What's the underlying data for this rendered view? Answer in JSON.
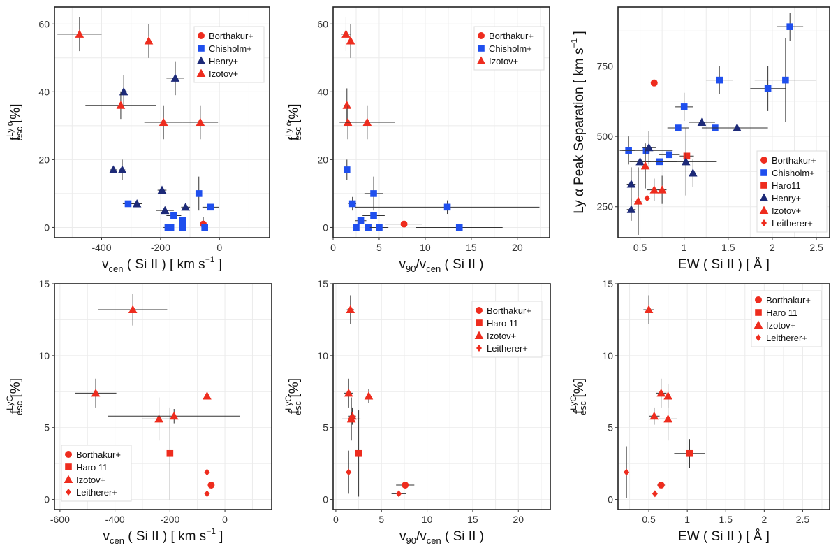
{
  "colors": {
    "Borthakur+": "#ee2c1e",
    "Chisholm+": "#1f4fee",
    "Haro11": "#ee2c1e",
    "Haro 11": "#ee2c1e",
    "Henry+": "#1d2a78",
    "Izotov+": "#ee2c1e",
    "Leitherer+": "#ee2c1e"
  },
  "markers": {
    "Borthakur+": "circle",
    "Chisholm+": "square",
    "Haro11": "square",
    "Haro 11": "square",
    "Henry+": "triangle",
    "Izotov+": "triangle",
    "Leitherer+": "diamond"
  },
  "chart_data": [
    {
      "type": "scatter",
      "panel": "top-left",
      "xlabel_main": "v",
      "xlabel_sub": "cen",
      "xlabel_rest": " ( Si II ) [ km s",
      "xlabel_sup": "−1",
      "xlabel_end": " ]",
      "ylabel_main": "f",
      "ylabel_sup": "Ly α",
      "ylabel_sub": "esc",
      "ylabel_rest": " [%]",
      "xlim": [
        -560,
        170
      ],
      "ylim": [
        -3,
        65
      ],
      "xticks": [
        -400,
        -200,
        0
      ],
      "yticks": [
        0,
        20,
        40,
        60
      ],
      "legend_position": "top-right",
      "legend": [
        "Borthakur+",
        "Chisholm+",
        "Henry+",
        "Izotov+"
      ],
      "series": [
        {
          "name": "Borthakur+",
          "points": [
            {
              "x": -55,
              "y": 1,
              "ye": 2
            }
          ]
        },
        {
          "name": "Chisholm+",
          "points": [
            {
              "x": -310,
              "y": 7,
              "xe": 18
            },
            {
              "x": -175,
              "y": 0,
              "xe": 15
            },
            {
              "x": -165,
              "y": 0
            },
            {
              "x": -155,
              "y": 3.5,
              "xe": 25
            },
            {
              "x": -125,
              "y": 2,
              "xe": 10
            },
            {
              "x": -125,
              "y": 0,
              "xe": 10
            },
            {
              "x": -70,
              "y": 10,
              "ye": 5
            },
            {
              "x": -50,
              "y": 0
            },
            {
              "x": -30,
              "y": 6,
              "xe": 28
            }
          ]
        },
        {
          "name": "Henry+",
          "points": [
            {
              "x": -325,
              "y": 40,
              "xe": 12,
              "ye": 5
            },
            {
              "x": -360,
              "y": 17,
              "xe": 12
            },
            {
              "x": -330,
              "y": 17,
              "xe": 10,
              "ye": 3
            },
            {
              "x": -280,
              "y": 7,
              "xe": 18
            },
            {
              "x": -195,
              "y": 11,
              "xe": 15
            },
            {
              "x": -185,
              "y": 5,
              "xe": 30
            },
            {
              "x": -115,
              "y": 6,
              "xe": 15
            },
            {
              "x": -150,
              "y": 44,
              "xe": 30,
              "ye": 5
            }
          ]
        },
        {
          "name": "Izotov+",
          "points": [
            {
              "x": -475,
              "y": 57,
              "xe": 75,
              "ye": 5
            },
            {
              "x": -240,
              "y": 55,
              "xe": 120,
              "ye": 5
            },
            {
              "x": -335,
              "y": 36,
              "xe": 120,
              "ye": 4
            },
            {
              "x": -190,
              "y": 31,
              "xe": 65,
              "ye": 5
            },
            {
              "x": -65,
              "y": 31,
              "xe": 60,
              "ye": 5
            }
          ]
        }
      ]
    },
    {
      "type": "scatter",
      "panel": "top-middle",
      "xlabel_main": "v",
      "xlabel_sub": "90",
      "xlabel_rest": "/v",
      "xlabel_sub2": "cen",
      "xlabel_end": " ( Si II )",
      "ylabel_main": "f",
      "ylabel_sup": "Ly α",
      "ylabel_sub": "esc",
      "ylabel_rest": " [%]",
      "xlim": [
        0,
        23.5
      ],
      "ylim": [
        -3,
        65
      ],
      "xticks": [
        0,
        5,
        10,
        15,
        20
      ],
      "yticks": [
        0,
        20,
        40,
        60
      ],
      "legend_position": "top-right",
      "legend": [
        "Borthakur+",
        "Chisholm+",
        "Izotov+"
      ],
      "series": [
        {
          "name": "Borthakur+",
          "points": [
            {
              "x": 7.7,
              "y": 1,
              "xe": 2
            }
          ]
        },
        {
          "name": "Chisholm+",
          "points": [
            {
              "x": 1.5,
              "y": 17,
              "ye": 3
            },
            {
              "x": 2.1,
              "y": 7,
              "xe": 0.4,
              "ye": 2
            },
            {
              "x": 2.5,
              "y": 0
            },
            {
              "x": 3.0,
              "y": 2,
              "xe": 0.6
            },
            {
              "x": 3.8,
              "y": 0
            },
            {
              "x": 4.4,
              "y": 3.5,
              "xe": 1.2
            },
            {
              "x": 4.4,
              "y": 10,
              "xe": 1,
              "ye": 5
            },
            {
              "x": 5.0,
              "y": 0,
              "xe": 1
            },
            {
              "x": 12.4,
              "y": 6,
              "xe": 10,
              "ye": 2
            },
            {
              "x": 13.7,
              "y": 0,
              "xe": 4.7
            }
          ]
        },
        {
          "name": "Izotov+",
          "points": [
            {
              "x": 1.4,
              "y": 57,
              "xe": 0.5,
              "ye": 5
            },
            {
              "x": 1.9,
              "y": 55,
              "xe": 1,
              "ye": 5
            },
            {
              "x": 1.5,
              "y": 36,
              "xe": 0.3,
              "ye": 5
            },
            {
              "x": 1.6,
              "y": 31,
              "xe": 0.4,
              "ye": 5
            },
            {
              "x": 3.7,
              "y": 31,
              "xe": 3,
              "ye": 5
            }
          ]
        }
      ]
    },
    {
      "type": "scatter",
      "panel": "top-right",
      "xlabel_main": "EW",
      "xlabel_rest": " ( Si II ) [ Å ]",
      "ylabel_main": "Ly α Peak Separation [ km s",
      "ylabel_sup": "−1",
      "ylabel_end": " ]",
      "xlim": [
        0.25,
        2.65
      ],
      "ylim": [
        140,
        960
      ],
      "xticks": [
        0.5,
        1.0,
        1.5,
        2.0,
        2.5
      ],
      "yticks": [
        250,
        500,
        750
      ],
      "legend_position": "bottom-right",
      "legend": [
        "Borthakur+",
        "Chisholm+",
        "Haro11",
        "Henry+",
        "Izotov+",
        "Leitherer+"
      ],
      "series": [
        {
          "name": "Borthakur+",
          "points": [
            {
              "x": 0.66,
              "y": 690
            }
          ]
        },
        {
          "name": "Chisholm+",
          "points": [
            {
              "x": 0.37,
              "y": 450,
              "xe": 0.07,
              "ye": 50
            },
            {
              "x": 0.57,
              "y": 450,
              "xe": 0.3
            },
            {
              "x": 0.72,
              "y": 410,
              "xe": 0.2
            },
            {
              "x": 0.83,
              "y": 435,
              "xe": 0.12
            },
            {
              "x": 0.93,
              "y": 530,
              "xe": 0.12
            },
            {
              "x": 1.0,
              "y": 605,
              "xe": 0.1,
              "ye": 50
            },
            {
              "x": 1.35,
              "y": 530,
              "xe": 0.15
            },
            {
              "x": 1.4,
              "y": 700,
              "xe": 0.15,
              "ye": 50
            },
            {
              "x": 1.95,
              "y": 670,
              "xe": 0.2,
              "ye": 80
            },
            {
              "x": 2.15,
              "y": 700,
              "xe": 0.35,
              "ye": 150
            },
            {
              "x": 2.2,
              "y": 890,
              "xe": 0.15,
              "ye": 50
            }
          ]
        },
        {
          "name": "Haro11",
          "points": [
            {
              "x": 1.03,
              "y": 430,
              "xe": 0.08
            }
          ]
        },
        {
          "name": "Henry+",
          "points": [
            {
              "x": 0.4,
              "y": 240,
              "xe": 0.05,
              "ye": 40
            },
            {
              "x": 0.4,
              "y": 330,
              "xe": 0.05,
              "ye": 60
            },
            {
              "x": 0.5,
              "y": 410,
              "xe": 0.12
            },
            {
              "x": 0.6,
              "y": 460,
              "xe": 0.08,
              "ye": 60
            },
            {
              "x": 1.02,
              "y": 410,
              "xe": 0.35,
              "ye": 120
            },
            {
              "x": 1.1,
              "y": 370,
              "xe": 0.35,
              "ye": 50
            },
            {
              "x": 1.2,
              "y": 550,
              "xe": 0.15
            },
            {
              "x": 1.6,
              "y": 530,
              "xe": 0.35
            }
          ]
        },
        {
          "name": "Izotov+",
          "points": [
            {
              "x": 0.48,
              "y": 270,
              "xe": 0.05,
              "ye": 120
            },
            {
              "x": 0.56,
              "y": 395,
              "xe": 0.05,
              "ye": 80
            },
            {
              "x": 0.66,
              "y": 310,
              "xe": 0.08,
              "ye": 40
            },
            {
              "x": 0.75,
              "y": 310,
              "xe": 0.05,
              "ye": 50
            }
          ]
        },
        {
          "name": "Leitherer+",
          "points": [
            {
              "x": 0.58,
              "y": 280
            }
          ]
        }
      ]
    },
    {
      "type": "scatter",
      "panel": "bottom-left",
      "xlabel_main": "v",
      "xlabel_sub": "cen",
      "xlabel_rest": " ( Si II ) [ km s",
      "xlabel_sup": "−1",
      "xlabel_end": " ]",
      "ylabel_main": "f",
      "ylabel_sup": "LyC",
      "ylabel_sub": "esc",
      "ylabel_rest": " [%]",
      "xlim": [
        -620,
        170
      ],
      "ylim": [
        -0.7,
        15
      ],
      "xticks": [
        -600,
        -400,
        -200,
        0
      ],
      "yticks": [
        0,
        5,
        10,
        15
      ],
      "legend_position": "bottom-left",
      "legend": [
        "Borthakur+",
        "Haro 11",
        "Izotov+",
        "Leitherer+"
      ],
      "series": [
        {
          "name": "Borthakur+",
          "points": [
            {
              "x": -50,
              "y": 1
            }
          ]
        },
        {
          "name": "Haro 11",
          "points": [
            {
              "x": -200,
              "y": 3.2,
              "ye": 3.2
            }
          ]
        },
        {
          "name": "Izotov+",
          "points": [
            {
              "x": -335,
              "y": 13.2,
              "xe": 125,
              "ye": 1.1
            },
            {
              "x": -470,
              "y": 7.4,
              "xe": 75,
              "ye": 1
            },
            {
              "x": -65,
              "y": 7.2,
              "xe": 30,
              "ye": 0.8
            },
            {
              "x": -240,
              "y": 5.6,
              "xe": 60,
              "ye": 1.5
            },
            {
              "x": -185,
              "y": 5.8,
              "xe": 240,
              "ye": 0.5
            }
          ]
        },
        {
          "name": "Leitherer+",
          "points": [
            {
              "x": -65,
              "y": 1.9,
              "ye": 1
            },
            {
              "x": -65,
              "y": 0.4,
              "ye": 0.3
            }
          ]
        }
      ]
    },
    {
      "type": "scatter",
      "panel": "bottom-middle",
      "xlabel_main": "v",
      "xlabel_sub": "90",
      "xlabel_rest": "/v",
      "xlabel_sub2": "cen",
      "xlabel_end": " ( Si II )",
      "ylabel_main": "f",
      "ylabel_sup": "LyC",
      "ylabel_sub": "esc",
      "ylabel_rest": " [%]",
      "xlim": [
        -0.3,
        23.5
      ],
      "ylim": [
        -0.7,
        15
      ],
      "xticks": [
        0,
        5,
        10,
        15,
        20
      ],
      "yticks": [
        0,
        5,
        10,
        15
      ],
      "legend_position": "top-right",
      "legend": [
        "Borthakur+",
        "Haro 11",
        "Izotov+",
        "Leitherer+"
      ],
      "series": [
        {
          "name": "Borthakur+",
          "points": [
            {
              "x": 7.6,
              "y": 1,
              "xe": 1
            }
          ]
        },
        {
          "name": "Haro 11",
          "points": [
            {
              "x": 2.5,
              "y": 3.2,
              "ye": 3
            }
          ]
        },
        {
          "name": "Izotov+",
          "points": [
            {
              "x": 1.6,
              "y": 13.2,
              "xe": 0.4,
              "ye": 1
            },
            {
              "x": 1.4,
              "y": 7.4,
              "xe": 0.5,
              "ye": 1
            },
            {
              "x": 3.6,
              "y": 7.2,
              "xe": 3,
              "ye": 0.5
            },
            {
              "x": 1.8,
              "y": 5.8,
              "xe": 0.4,
              "ye": 0.6
            },
            {
              "x": 1.7,
              "y": 5.6,
              "xe": 1,
              "ye": 1.5
            }
          ]
        },
        {
          "name": "Leitherer+",
          "points": [
            {
              "x": 1.4,
              "y": 1.9,
              "ye": 1.5
            },
            {
              "x": 6.9,
              "y": 0.4,
              "xe": 0.8
            }
          ]
        }
      ]
    },
    {
      "type": "scatter",
      "panel": "bottom-right",
      "xlabel_main": "EW",
      "xlabel_rest": " ( Si II ) [ Å ]",
      "ylabel_main": "f",
      "ylabel_sup": "LyC",
      "ylabel_sub": "esc",
      "ylabel_rest": " [%]",
      "xlim": [
        0.1,
        2.85
      ],
      "ylim": [
        -0.7,
        15
      ],
      "xticks": [
        0.5,
        1.0,
        1.5,
        2.0,
        2.5
      ],
      "yticks": [
        0,
        5,
        10,
        15
      ],
      "legend_position": "top-right",
      "legend": [
        "Borthakur+",
        "Haro 11",
        "Izotov+",
        "Leitherer+"
      ],
      "series": [
        {
          "name": "Borthakur+",
          "points": [
            {
              "x": 0.66,
              "y": 1,
              "xe": 0.05
            }
          ]
        },
        {
          "name": "Haro 11",
          "points": [
            {
              "x": 1.03,
              "y": 3.2,
              "xe": 0.2,
              "ye": 1
            }
          ]
        },
        {
          "name": "Izotov+",
          "points": [
            {
              "x": 0.5,
              "y": 13.2,
              "xe": 0.07,
              "ye": 1
            },
            {
              "x": 0.66,
              "y": 7.4,
              "xe": 0.07,
              "ye": 1
            },
            {
              "x": 0.75,
              "y": 7.2,
              "xe": 0.07,
              "ye": 0.8
            },
            {
              "x": 0.57,
              "y": 5.8,
              "xe": 0.07,
              "ye": 0.6
            },
            {
              "x": 0.75,
              "y": 5.6,
              "xe": 0.12,
              "ye": 1.5
            }
          ]
        },
        {
          "name": "Leitherer+",
          "points": [
            {
              "x": 0.21,
              "y": 1.9,
              "ye": 1.8
            },
            {
              "x": 0.58,
              "y": 0.4,
              "xe": 0.03
            }
          ]
        }
      ]
    }
  ]
}
